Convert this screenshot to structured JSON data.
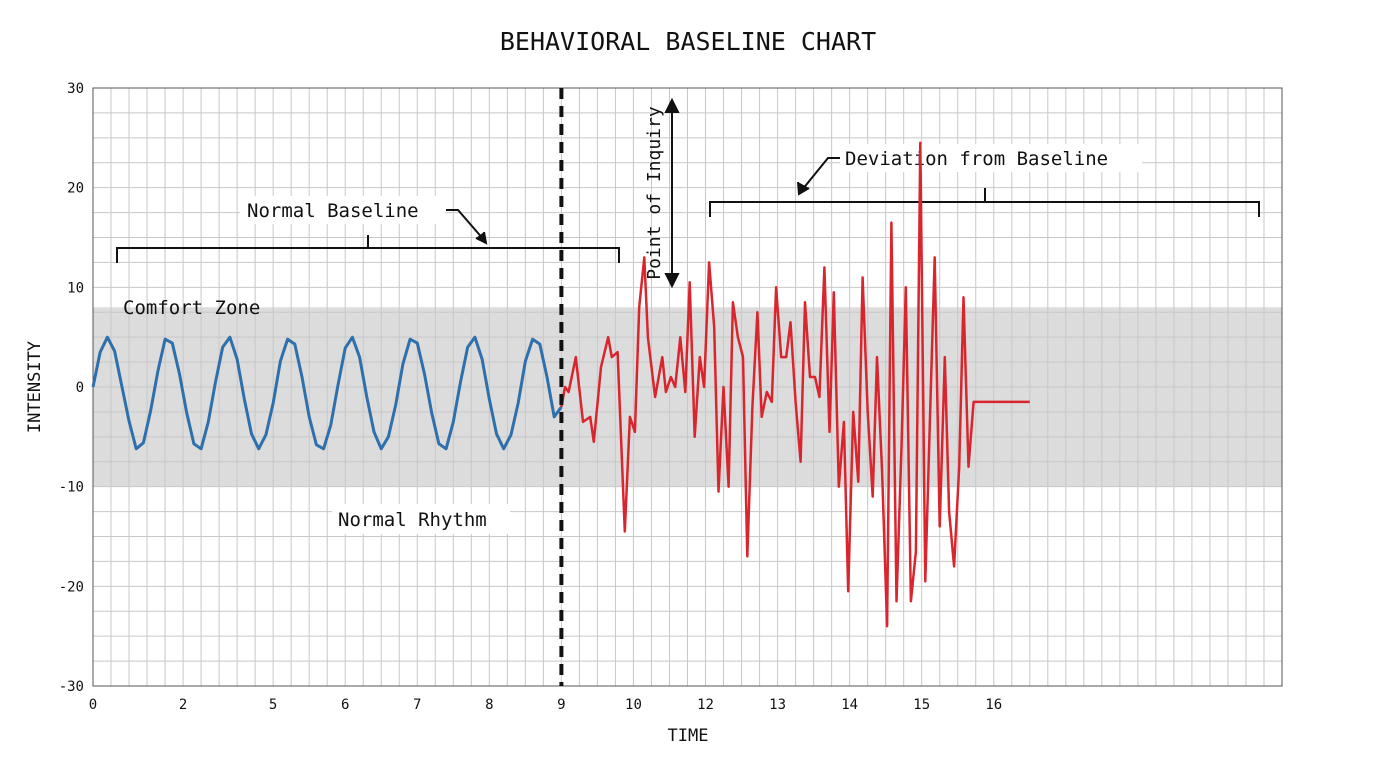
{
  "chart_data": {
    "type": "line",
    "title": "BEHAVIORAL BASELINE CHART",
    "xlabel": "TIME",
    "ylabel": "INTENSITY",
    "xlim": [
      0,
      16.5
    ],
    "ylim": [
      -30,
      30
    ],
    "x_ticks": [
      {
        "value": 0,
        "label": "0"
      },
      {
        "value": 1.25,
        "label": "2"
      },
      {
        "value": 2.5,
        "label": "5"
      },
      {
        "value": 3.5,
        "label": "6"
      },
      {
        "value": 4.5,
        "label": "7"
      },
      {
        "value": 5.5,
        "label": "8"
      },
      {
        "value": 6.5,
        "label": "9"
      },
      {
        "value": 7.5,
        "label": "10"
      },
      {
        "value": 8.5,
        "label": "12"
      },
      {
        "value": 9.5,
        "label": "13"
      },
      {
        "value": 10.5,
        "label": "14"
      },
      {
        "value": 11.5,
        "label": "15"
      },
      {
        "value": 12.5,
        "label": "16"
      }
    ],
    "y_ticks": [
      30,
      20,
      10,
      0,
      -10,
      -20,
      -30
    ],
    "grid": true,
    "comfort_zone": {
      "label": "Comfort Zone",
      "y_range": [
        -10,
        8
      ],
      "color": "#dcdcdc"
    },
    "point_of_inquiry": {
      "label": "Point of Inquiry",
      "x": 6.5
    },
    "annotations": {
      "normal_baseline": "Normal Baseline",
      "deviation": "Deviation from Baseline",
      "normal_rhythm": "Normal Rhythm"
    },
    "series": [
      {
        "color": "#2f6fab",
        "x": [
          0.0,
          0.1,
          0.2,
          0.3,
          0.4,
          0.5,
          0.6,
          0.7,
          0.8,
          0.9,
          1.0,
          1.1,
          1.2,
          1.3,
          1.4,
          1.5,
          1.6,
          1.7,
          1.8,
          1.9,
          2.0,
          2.1,
          2.2,
          2.3,
          2.4,
          2.5,
          2.6,
          2.7,
          2.8,
          2.9,
          3.0,
          3.1,
          3.2,
          3.3,
          3.4,
          3.5,
          3.6,
          3.7,
          3.8,
          3.9,
          4.0,
          4.1,
          4.2,
          4.3,
          4.4,
          4.5,
          4.6,
          4.7,
          4.8,
          4.9,
          5.0,
          5.1,
          5.2,
          5.3,
          5.4,
          5.5,
          5.6,
          5.7,
          5.8,
          5.9,
          6.0,
          6.1,
          6.2,
          6.3,
          6.4,
          6.5
        ],
        "y": [
          0.0,
          3.5,
          5.0,
          3.6,
          0.1,
          -3.4,
          -6.2,
          -5.6,
          -2.4,
          1.6,
          4.8,
          4.4,
          1.3,
          -2.6,
          -5.7,
          -6.2,
          -3.5,
          0.5,
          4.0,
          5.0,
          2.8,
          -1.2,
          -4.7,
          -6.2,
          -4.8,
          -1.6,
          2.6,
          4.8,
          4.3,
          1.0,
          -3.0,
          -5.8,
          -6.2,
          -3.8,
          0.2,
          3.9,
          5.0,
          3.0,
          -1.0,
          -4.5,
          -6.2,
          -5.0,
          -1.8,
          2.3,
          4.8,
          4.4,
          1.3,
          -2.6,
          -5.7,
          -6.2,
          -3.5,
          0.5,
          4.0,
          5.0,
          2.8,
          -1.2,
          -4.7,
          -6.2,
          -4.8,
          -1.6,
          2.6,
          4.8,
          4.3,
          1.0,
          -3.0,
          -2.0
        ]
      },
      {
        "color": "#d9262e",
        "x": [
          6.5,
          6.55,
          6.6,
          6.7,
          6.8,
          6.9,
          6.95,
          7.05,
          7.15,
          7.2,
          7.28,
          7.38,
          7.45,
          7.52,
          7.58,
          7.65,
          7.7,
          7.8,
          7.9,
          7.95,
          8.02,
          8.08,
          8.15,
          8.22,
          8.28,
          8.35,
          8.42,
          8.48,
          8.55,
          8.62,
          8.68,
          8.75,
          8.82,
          8.88,
          8.95,
          9.02,
          9.08,
          9.15,
          9.22,
          9.28,
          9.35,
          9.42,
          9.48,
          9.55,
          9.62,
          9.68,
          9.75,
          9.82,
          9.88,
          9.95,
          10.02,
          10.08,
          10.15,
          10.22,
          10.28,
          10.35,
          10.42,
          10.48,
          10.55,
          10.62,
          10.68,
          10.75,
          10.82,
          10.88,
          10.95,
          11.02,
          11.08,
          11.15,
          11.22,
          11.28,
          11.35,
          11.42,
          11.48,
          11.55,
          11.62,
          11.68,
          11.75,
          11.82,
          11.88,
          11.95,
          12.02,
          12.08,
          12.15,
          12.22,
          12.28,
          12.35,
          12.42,
          12.48,
          12.55,
          12.62,
          12.68,
          12.75,
          12.82,
          12.88,
          12.95,
          13.0
        ],
        "y": [
          -2,
          0,
          -0.5,
          3,
          -3.5,
          -3,
          -5.5,
          2,
          5,
          3,
          3.5,
          -14.5,
          -3,
          -4.5,
          8,
          13,
          5,
          -1,
          3,
          -0.5,
          1,
          0,
          5,
          -0.5,
          10.5,
          -5,
          3,
          0,
          12.5,
          6,
          -10.5,
          0,
          -10,
          8.5,
          5,
          3,
          -17,
          -2,
          7.5,
          -3,
          -0.5,
          -1.5,
          10,
          3,
          3,
          6.5,
          -1.5,
          -7.5,
          8.5,
          1,
          1,
          -1,
          12,
          -4.5,
          9.5,
          -10,
          -3.5,
          -20.5,
          -2.5,
          -9.5,
          11,
          -2.5,
          -11,
          3,
          -8.5,
          -24,
          16.5,
          -21.5,
          -6,
          10,
          -21.5,
          -16.5,
          24.5,
          -19.5,
          -2,
          13,
          -14,
          3,
          -12.5,
          -18,
          -8,
          9,
          -8,
          -1.5,
          -1.5,
          -1.5,
          -1.5,
          -1.5,
          -1.5,
          -1.5,
          -1.5,
          -1.5,
          -1.5,
          -1.5,
          -1.5,
          -1.5
        ]
      }
    ]
  }
}
